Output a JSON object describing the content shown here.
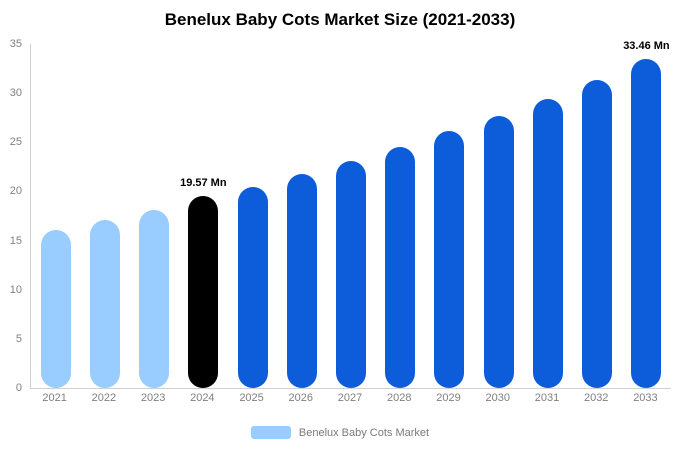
{
  "chart_data": {
    "type": "bar",
    "title": "Benelux Baby Cots Market Size (2021-2033)",
    "categories": [
      "2021",
      "2022",
      "2023",
      "2024",
      "2025",
      "2026",
      "2027",
      "2028",
      "2029",
      "2030",
      "2031",
      "2032",
      "2033"
    ],
    "values": [
      16.1,
      17.1,
      18.1,
      19.57,
      20.5,
      21.8,
      23.1,
      24.5,
      26.1,
      27.7,
      29.4,
      31.3,
      33.46
    ],
    "bar_colors": [
      "#99ccff",
      "#99ccff",
      "#99ccff",
      "#000000",
      "#0d5ddb",
      "#0d5ddb",
      "#0d5ddb",
      "#0d5ddb",
      "#0d5ddb",
      "#0d5ddb",
      "#0d5ddb",
      "#0d5ddb",
      "#0d5ddb"
    ],
    "data_labels": [
      {
        "index": 3,
        "text": "19.57 Mn"
      },
      {
        "index": 12,
        "text": "33.46 Mn"
      }
    ],
    "ylim": [
      0,
      35
    ],
    "yticks": [
      0,
      5,
      10,
      15,
      20,
      25,
      30,
      35
    ],
    "xlabel": "",
    "ylabel": "",
    "grid": false,
    "legend": {
      "label": "Benelux Baby Cots Market",
      "swatch_color": "#99ccff",
      "position": "bottom"
    },
    "colors": {
      "historical": "#99ccff",
      "base_year": "#000000",
      "forecast": "#0d5ddb",
      "axis_line": "#d0d0d0",
      "tick_text": "#808080",
      "title_text": "#000000"
    }
  }
}
